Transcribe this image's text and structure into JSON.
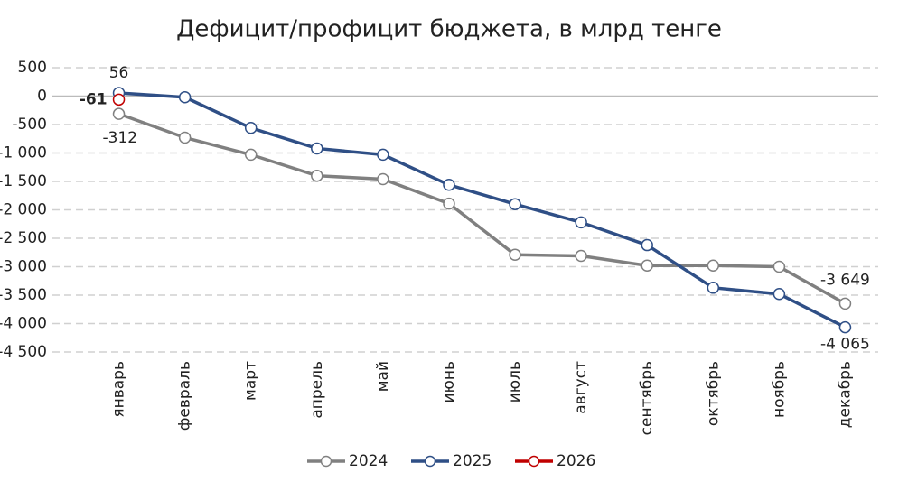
{
  "chart_data": {
    "type": "line",
    "title": "Дефицит/профицит бюджета, в млрд тенге",
    "categories": [
      "январь",
      "февраль",
      "март",
      "апрель",
      "май",
      "июнь",
      "июль",
      "август",
      "сентябрь",
      "октябрь",
      "ноябрь",
      "декабрь"
    ],
    "series": [
      {
        "name": "2024",
        "color": "#808080",
        "values": [
          -312,
          -730,
          -1030,
          -1400,
          -1460,
          -1890,
          -2790,
          -2810,
          -2980,
          -2980,
          -3000,
          -3649
        ],
        "value_labels": [
          "-312",
          null,
          null,
          null,
          null,
          null,
          null,
          null,
          null,
          null,
          null,
          "-3 649"
        ]
      },
      {
        "name": "2025",
        "color": "#2f4f86",
        "values": [
          56,
          -20,
          -560,
          -920,
          -1030,
          -1560,
          -1900,
          -2220,
          -2620,
          -3370,
          -3480,
          -4065
        ],
        "value_labels": [
          "56",
          null,
          null,
          null,
          null,
          null,
          null,
          null,
          null,
          null,
          null,
          "-4 065"
        ]
      },
      {
        "name": "2026",
        "color": "#c00000",
        "values": [
          -61,
          null,
          null,
          null,
          null,
          null,
          null,
          null,
          null,
          null,
          null,
          null
        ],
        "value_labels": [
          "-61",
          null,
          null,
          null,
          null,
          null,
          null,
          null,
          null,
          null,
          null,
          null
        ]
      }
    ],
    "ylim": [
      -4500,
      500
    ],
    "yticks": [
      500,
      0,
      -500,
      {
        "value": -1000,
        "label": "-1 000"
      },
      {
        "value": -1500,
        "label": "-1 500"
      },
      {
        "value": -2000,
        "label": "-2 000"
      },
      {
        "value": -2500,
        "label": "-2 500"
      },
      {
        "value": -3000,
        "label": "-3 000"
      },
      {
        "value": -3500,
        "label": "-3 500"
      },
      {
        "value": -4000,
        "label": "-4 000"
      },
      {
        "value": -4500,
        "label": "-4 500"
      }
    ],
    "grid": true,
    "legend": "bottom"
  }
}
